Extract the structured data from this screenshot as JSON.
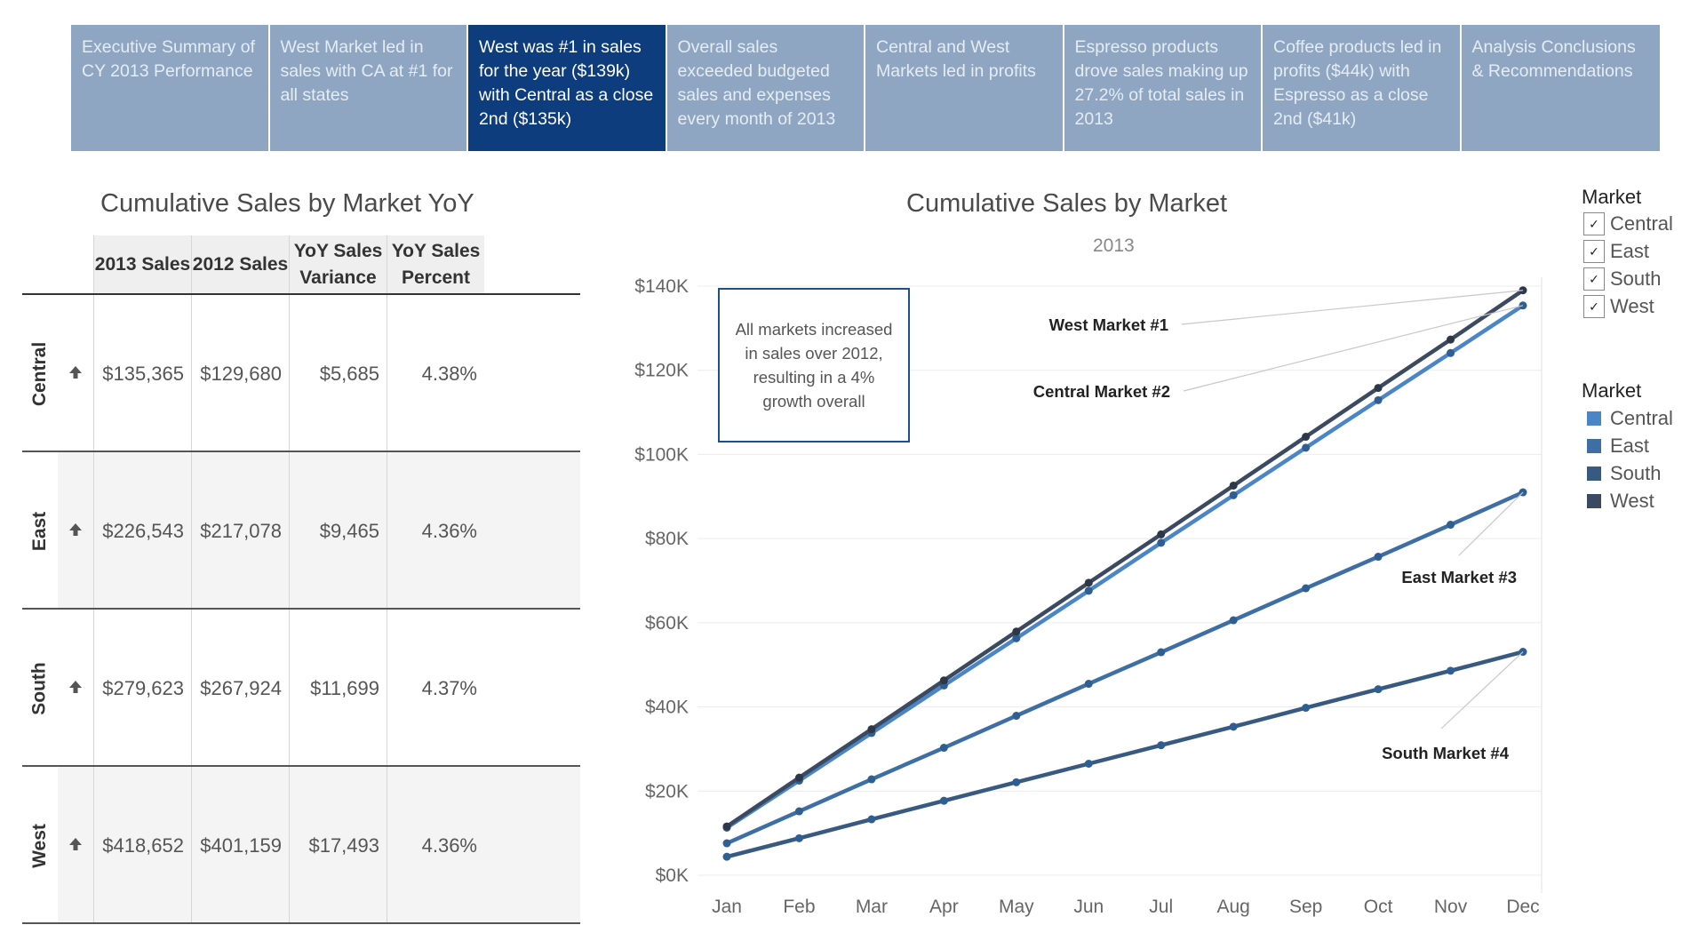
{
  "tabs": [
    {
      "label": "Executive Summary of CY 2013 Performance"
    },
    {
      "label": "West Market led in sales with CA at #1 for all states"
    },
    {
      "label": "West was #1 in sales for the year ($139k) with Central as a close 2nd ($135k)"
    },
    {
      "label": "Overall sales exceeded budgeted sales and expenses every month of 2013"
    },
    {
      "label": "Central and West Markets led in profits"
    },
    {
      "label": "Espresso products drove sales making up  27.2% of total sales in 2013"
    },
    {
      "label": "Coffee products led in profits ($44k) with Espresso as a close 2nd ($41k)"
    },
    {
      "label": "Analysis Conclusions & Recommendations"
    }
  ],
  "active_tab": 2,
  "table": {
    "title": "Cumulative Sales by Market YoY",
    "headers": [
      "2013 Sales",
      "2012 Sales",
      "YoY Sales Variance",
      "YoY Sales Percent"
    ],
    "rows": [
      {
        "market": "Central",
        "sales_2013": "$135,365",
        "sales_2012": "$129,680",
        "variance": "$5,685",
        "percent": "4.38%"
      },
      {
        "market": "East",
        "sales_2013": "$226,543",
        "sales_2012": "$217,078",
        "variance": "$9,465",
        "percent": "4.36%"
      },
      {
        "market": "South",
        "sales_2013": "$279,623",
        "sales_2012": "$267,924",
        "variance": "$11,699",
        "percent": "4.37%"
      },
      {
        "market": "West",
        "sales_2013": "$418,652",
        "sales_2012": "$401,159",
        "variance": "$17,493",
        "percent": "4.36%"
      }
    ]
  },
  "note": "All markets increased\nin sales over 2012,\nresulting in a 4%\ngrowth overall",
  "legend_filter": {
    "title": "Market",
    "items": [
      "Central",
      "East",
      "South",
      "West"
    ]
  },
  "legend_color": {
    "title": "Market",
    "items": [
      {
        "name": "Central",
        "color": "#4a86c5"
      },
      {
        "name": "East",
        "color": "#3e6fa4"
      },
      {
        "name": "South",
        "color": "#385a80"
      },
      {
        "name": "West",
        "color": "#3b4a60"
      }
    ]
  },
  "chart_data": {
    "type": "line",
    "title": "Cumulative Sales by Market",
    "subtitle": "2013",
    "x": [
      "Jan",
      "Feb",
      "Mar",
      "Apr",
      "May",
      "Jun",
      "Jul",
      "Aug",
      "Sep",
      "Oct",
      "Nov",
      "Dec"
    ],
    "ylim": [
      0,
      140000
    ],
    "yticks": [
      {
        "value": 0,
        "label": "$0K"
      },
      {
        "value": 20000,
        "label": "$20K"
      },
      {
        "value": 40000,
        "label": "$40K"
      },
      {
        "value": 60000,
        "label": "$60K"
      },
      {
        "value": 80000,
        "label": "$80K"
      },
      {
        "value": 100000,
        "label": "$100K"
      },
      {
        "value": 120000,
        "label": "$120K"
      },
      {
        "value": 140000,
        "label": "$140K"
      }
    ],
    "grid": true,
    "legend": "right",
    "series": [
      {
        "name": "Central",
        "color": "#4a86c5",
        "values": [
          11300,
          22500,
          33800,
          45100,
          56300,
          67600,
          79000,
          90300,
          101600,
          112900,
          124100,
          135400
        ]
      },
      {
        "name": "East",
        "color": "#3e6fa4",
        "values": [
          7600,
          15200,
          22800,
          30300,
          37900,
          45500,
          53000,
          60600,
          68200,
          75700,
          83300,
          91000
        ]
      },
      {
        "name": "South",
        "color": "#385a80",
        "values": [
          4400,
          8800,
          13300,
          17700,
          22100,
          26500,
          30900,
          35300,
          39800,
          44200,
          48600,
          53100
        ]
      },
      {
        "name": "West",
        "color": "#3b4a60",
        "values": [
          11600,
          23200,
          34700,
          46300,
          57900,
          69500,
          81000,
          92600,
          104200,
          115800,
          127300,
          139000
        ]
      }
    ],
    "annotations": [
      {
        "text": "West Market #1",
        "series": "West"
      },
      {
        "text": "Central Market #2",
        "series": "Central"
      },
      {
        "text": "East Market #3",
        "series": "East"
      },
      {
        "text": "South Market #4",
        "series": "South"
      }
    ]
  }
}
